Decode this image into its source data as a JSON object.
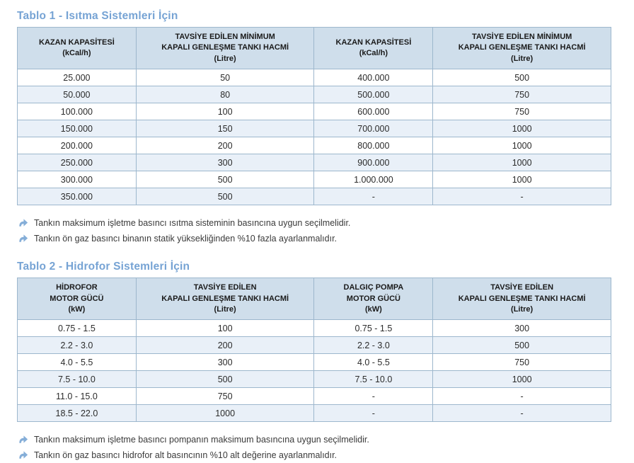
{
  "colors": {
    "title": "#76a3d4",
    "header_bg": "#cfdeeb",
    "row_alt": "#e9f0f8",
    "border": "#9db7cd",
    "cell_text": "#2b2b2b",
    "note_text": "#3a3a3a",
    "arrow": "#85aed8"
  },
  "tables": [
    {
      "title": "Tablo 1 - Isıtma Sistemleri İçin",
      "headers": [
        {
          "lines": [
            "KAZAN KAPASİTESİ",
            "(kCal/h)"
          ]
        },
        {
          "lines": [
            "TAVSİYE EDİLEN MİNİMUM",
            "KAPALI GENLEŞME TANKI HACMİ",
            "(Litre)"
          ]
        },
        {
          "lines": [
            "KAZAN KAPASİTESİ",
            "(kCal/h)"
          ]
        },
        {
          "lines": [
            "TAVSİYE EDİLEN MİNİMUM",
            "KAPALI GENLEŞME TANKI HACMİ",
            "(Litre)"
          ]
        }
      ],
      "rows": [
        [
          "25.000",
          "50",
          "400.000",
          "500"
        ],
        [
          "50.000",
          "80",
          "500.000",
          "750"
        ],
        [
          "100.000",
          "100",
          "600.000",
          "750"
        ],
        [
          "150.000",
          "150",
          "700.000",
          "1000"
        ],
        [
          "200.000",
          "200",
          "800.000",
          "1000"
        ],
        [
          "250.000",
          "300",
          "900.000",
          "1000"
        ],
        [
          "300.000",
          "500",
          "1.000.000",
          "1000"
        ],
        [
          "350.000",
          "500",
          "-",
          "-"
        ]
      ],
      "notes": [
        "Tankın maksimum işletme basıncı ısıtma sisteminin basıncına uygun seçilmelidir.",
        "Tankın ön gaz basıncı binanın statik yüksekliğinden %10 fazla ayarlanmalıdır."
      ]
    },
    {
      "title": "Tablo 2 - Hidrofor Sistemleri İçin",
      "headers": [
        {
          "lines": [
            "HİDROFOR",
            "MOTOR GÜCÜ",
            "(kW)"
          ]
        },
        {
          "lines": [
            "TAVSİYE EDİLEN",
            "KAPALI GENLEŞME TANKI HACMİ",
            "(Litre)"
          ]
        },
        {
          "lines": [
            "DALGIÇ POMPA",
            "MOTOR GÜCÜ",
            "(kW)"
          ]
        },
        {
          "lines": [
            "TAVSİYE EDİLEN",
            "KAPALI GENLEŞME TANKI HACMİ",
            "(Litre)"
          ]
        }
      ],
      "rows": [
        [
          "0.75 - 1.5",
          "100",
          "0.75 - 1.5",
          "300"
        ],
        [
          "2.2 - 3.0",
          "200",
          "2.2 - 3.0",
          "500"
        ],
        [
          "4.0 - 5.5",
          "300",
          "4.0 - 5.5",
          "750"
        ],
        [
          "7.5 - 10.0",
          "500",
          "7.5 - 10.0",
          "1000"
        ],
        [
          "11.0 - 15.0",
          "750",
          "-",
          "-"
        ],
        [
          "18.5 - 22.0",
          "1000",
          "-",
          "-"
        ]
      ],
      "notes": [
        "Tankın maksimum işletme basıncı pompanın maksimum basıncına uygun seçilmelidir.",
        "Tankın ön gaz basıncı hidrofor alt basıncının %10 alt değerine ayarlanmalıdır."
      ]
    }
  ]
}
